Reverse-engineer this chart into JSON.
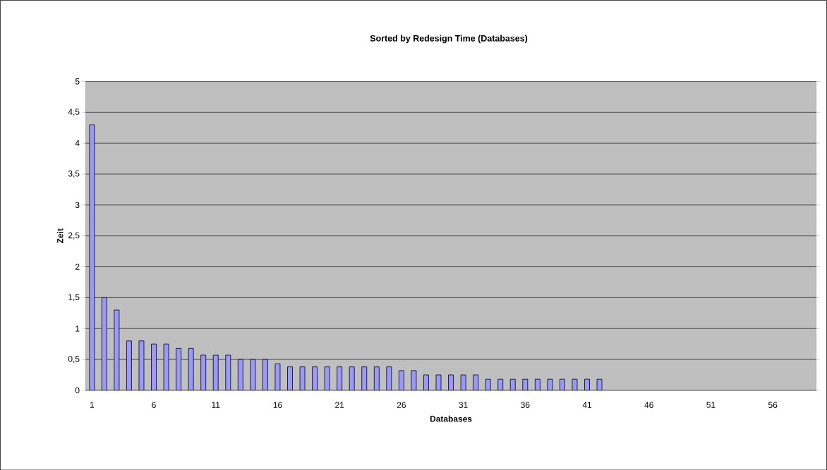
{
  "chart_data": {
    "type": "bar",
    "title": "Sorted by Redesign Time (Databases)",
    "xlabel": "Databases",
    "ylabel": "Zeit",
    "categories": [
      "1",
      null,
      null,
      null,
      null,
      "6",
      null,
      null,
      null,
      null,
      "11",
      null,
      null,
      null,
      null,
      "16",
      null,
      null,
      null,
      null,
      "21",
      null,
      null,
      null,
      null,
      "26",
      null,
      null,
      null,
      null,
      "31",
      null,
      null,
      null,
      null,
      "36",
      null,
      null,
      null,
      null,
      "41",
      null,
      null,
      null,
      null,
      "46",
      null,
      null,
      null,
      null,
      "51",
      null,
      null,
      null,
      null,
      "56",
      null,
      null,
      null
    ],
    "values": [
      4.3,
      1.5,
      1.3,
      0.8,
      0.8,
      0.75,
      0.75,
      0.68,
      0.68,
      0.57,
      0.57,
      0.57,
      0.5,
      0.5,
      0.5,
      0.43,
      0.38,
      0.38,
      0.38,
      0.38,
      0.38,
      0.38,
      0.38,
      0.38,
      0.38,
      0.32,
      0.32,
      0.25,
      0.25,
      0.25,
      0.25,
      0.25,
      0.18,
      0.18,
      0.18,
      0.18,
      0.18,
      0.18,
      0.18,
      0.18,
      0.18,
      0.18,
      null,
      null,
      null,
      null,
      null,
      null,
      null,
      null,
      null,
      null,
      null,
      null,
      null,
      null,
      null,
      null,
      null
    ],
    "color": "#9999ff",
    "ylim": [
      0,
      5
    ],
    "yticks": [
      0,
      {
        "value": 0.5,
        "label": "0,5"
      },
      1,
      {
        "value": 1.5,
        "label": "1,5"
      },
      2,
      {
        "value": 2.5,
        "label": "2,5"
      },
      3,
      {
        "value": 3.5,
        "label": "3,5"
      },
      4,
      {
        "value": 4.5,
        "label": "4,5"
      },
      5
    ],
    "grid": "y"
  }
}
